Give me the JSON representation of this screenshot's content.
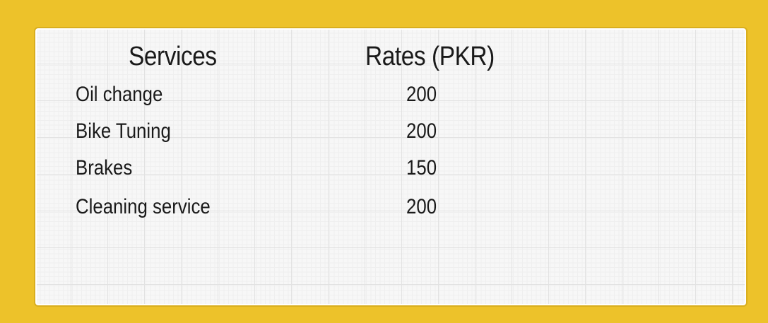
{
  "table": {
    "headers": {
      "service": "Services",
      "rate": "Rates (PKR)"
    },
    "rows": [
      {
        "service": "Oil change",
        "rate": "200"
      },
      {
        "service": "Bike Tuning",
        "rate": "200"
      },
      {
        "service": "Brakes",
        "rate": "150"
      },
      {
        "service": "Cleaning service",
        "rate": "200"
      }
    ]
  },
  "colors": {
    "background": "#EDC22A",
    "card": "#F7F7F7",
    "text": "#1A1A1A"
  }
}
